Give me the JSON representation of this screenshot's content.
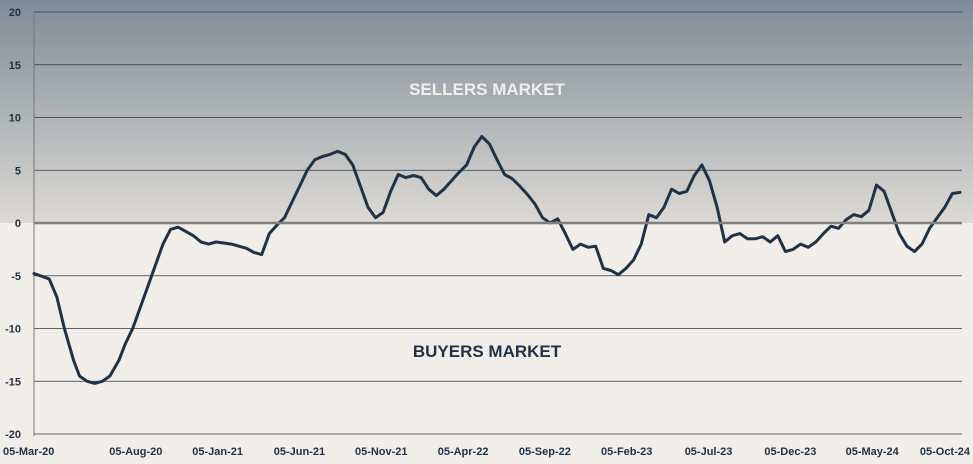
{
  "chart_data": {
    "type": "line",
    "title": "",
    "xlabel": "",
    "ylabel": "",
    "ylim": [
      -20,
      20
    ],
    "y_ticks": [
      "20",
      "15",
      "10",
      "5",
      "0",
      "-5",
      "-10",
      "-15",
      "-20"
    ],
    "x_ticks": [
      "05-Mar-20",
      "05-Aug-20",
      "05-Jan-21",
      "05-Jun-21",
      "05-Nov-21",
      "05-Apr-22",
      "05-Sep-22",
      "05-Feb-23",
      "05-Jul-23",
      "05-Dec-23",
      "05-May-24",
      "05-Oct-24"
    ],
    "annotations": {
      "upper": "SELLERS MARKET",
      "lower": "BUYERS MARKET"
    },
    "grid": true,
    "colors": {
      "line": "#1f3246",
      "upper_top": "#7d8c97",
      "upper_bottom": "#ddd9d4",
      "lower": "#f1ede8",
      "zero_line": "#808080",
      "sellers_label": "#f2efea",
      "buyers_label": "#1f3246"
    },
    "series": [
      {
        "points": [
          [
            0,
            -4.8
          ],
          [
            1,
            -5.3
          ],
          [
            1.5,
            -7
          ],
          [
            2,
            -10
          ],
          [
            2.6,
            -13
          ],
          [
            3,
            -14.5
          ],
          [
            3.5,
            -15
          ],
          [
            4,
            -15.2
          ],
          [
            4.5,
            -15
          ],
          [
            5,
            -14.5
          ],
          [
            5.6,
            -13
          ],
          [
            6,
            -11.5
          ],
          [
            6.5,
            -10
          ],
          [
            7,
            -8
          ],
          [
            7.5,
            -6
          ],
          [
            8,
            -4
          ],
          [
            8.5,
            -2
          ],
          [
            9,
            -0.6
          ],
          [
            9.5,
            -0.4
          ],
          [
            10,
            -0.8
          ],
          [
            10.5,
            -1.2
          ],
          [
            11,
            -1.8
          ],
          [
            11.5,
            -2
          ],
          [
            12,
            -1.8
          ],
          [
            12.5,
            -1.9
          ],
          [
            13,
            -2
          ],
          [
            13.5,
            -2.2
          ],
          [
            14,
            -2.4
          ],
          [
            14.5,
            -2.8
          ],
          [
            15,
            -3
          ],
          [
            15.5,
            -1
          ],
          [
            16,
            -0.2
          ],
          [
            16.5,
            0.5
          ],
          [
            17,
            2
          ],
          [
            17.5,
            3.5
          ],
          [
            18,
            5
          ],
          [
            18.5,
            6
          ],
          [
            19,
            6.3
          ],
          [
            19.5,
            6.5
          ],
          [
            20,
            6.8
          ],
          [
            20.5,
            6.5
          ],
          [
            21,
            5.5
          ],
          [
            21.5,
            3.5
          ],
          [
            22,
            1.5
          ],
          [
            22.5,
            0.5
          ],
          [
            23,
            1
          ],
          [
            23.5,
            3
          ],
          [
            24,
            4.6
          ],
          [
            24.5,
            4.3
          ],
          [
            25,
            4.5
          ],
          [
            25.5,
            4.3
          ],
          [
            26,
            3.2
          ],
          [
            26.5,
            2.6
          ],
          [
            27,
            3.2
          ],
          [
            27.5,
            4
          ],
          [
            28,
            4.8
          ],
          [
            28.5,
            5.5
          ],
          [
            29,
            7.2
          ],
          [
            29.5,
            8.2
          ],
          [
            30,
            7.5
          ],
          [
            30.5,
            6
          ],
          [
            31,
            4.6
          ],
          [
            31.5,
            4.2
          ],
          [
            32,
            3.5
          ],
          [
            32.5,
            2.7
          ],
          [
            33,
            1.8
          ],
          [
            33.5,
            0.5
          ],
          [
            34,
            0
          ],
          [
            34.5,
            0.4
          ],
          [
            35,
            -1
          ],
          [
            35.5,
            -2.5
          ],
          [
            36,
            -2
          ],
          [
            36.5,
            -2.3
          ],
          [
            37,
            -2.2
          ],
          [
            37.5,
            -4.3
          ],
          [
            38,
            -4.5
          ],
          [
            38.5,
            -4.9
          ],
          [
            39,
            -4.3
          ],
          [
            39.5,
            -3.5
          ],
          [
            40,
            -2
          ],
          [
            40.5,
            0.8
          ],
          [
            41,
            0.5
          ],
          [
            41.5,
            1.5
          ],
          [
            42,
            3.2
          ],
          [
            42.5,
            2.8
          ],
          [
            43,
            3
          ],
          [
            43.5,
            4.5
          ],
          [
            44,
            5.5
          ],
          [
            44.5,
            4
          ],
          [
            45,
            1.5
          ],
          [
            45.5,
            -1.8
          ],
          [
            46,
            -1.2
          ],
          [
            46.5,
            -1
          ],
          [
            47,
            -1.5
          ],
          [
            47.5,
            -1.5
          ],
          [
            48,
            -1.3
          ],
          [
            48.5,
            -1.8
          ],
          [
            49,
            -1.2
          ],
          [
            49.5,
            -2.7
          ],
          [
            50,
            -2.5
          ],
          [
            50.5,
            -2
          ],
          [
            51,
            -2.3
          ],
          [
            51.5,
            -1.8
          ],
          [
            52,
            -1
          ],
          [
            52.5,
            -0.3
          ],
          [
            53,
            -0.5
          ],
          [
            53.5,
            0.3
          ],
          [
            54,
            0.8
          ],
          [
            54.5,
            0.6
          ],
          [
            55,
            1.2
          ],
          [
            55.5,
            3.6
          ],
          [
            56,
            3
          ],
          [
            56.5,
            1
          ],
          [
            57,
            -1
          ],
          [
            57.5,
            -2.2
          ],
          [
            58,
            -2.7
          ],
          [
            58.5,
            -2
          ],
          [
            59,
            -0.5
          ],
          [
            59.5,
            0.5
          ],
          [
            60,
            1.5
          ],
          [
            60.5,
            2.8
          ],
          [
            61,
            2.9
          ]
        ]
      }
    ]
  }
}
